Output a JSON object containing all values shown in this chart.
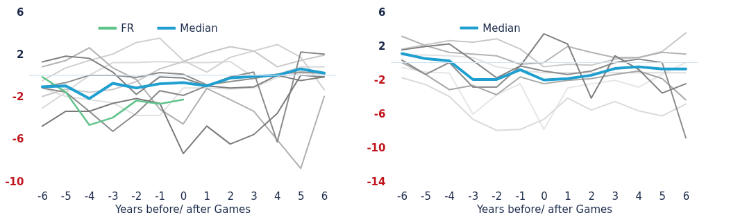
{
  "chart_data": [
    {
      "type": "line",
      "xlabel": "Years before/ after Games",
      "x": [
        -6,
        -5,
        -4,
        -3,
        -2,
        -1,
        0,
        1,
        2,
        3,
        4,
        5,
        6
      ],
      "xlim": [
        -6.56,
        6.5
      ],
      "xticks": [
        -6,
        -5,
        -4,
        -3,
        -2,
        -1,
        0,
        1,
        2,
        3,
        4,
        5,
        6
      ],
      "ylim": [
        -10,
        6
      ],
      "yticks": [
        6,
        2,
        -2,
        -6,
        -10
      ],
      "grid": false,
      "legend": "top",
      "ref_lines": [
        {
          "axis": "y",
          "value": 0,
          "color": "#cfe2f3"
        }
      ],
      "series": [
        {
          "color": "#d9d9d9",
          "values": [
            -3.1,
            -1.6,
            0,
            1.2,
            1.2,
            1.3,
            1.2,
            1.2,
            1.3,
            -0.2,
            0.1,
            0.8,
            0.8
          ]
        },
        {
          "color": "#e0e0e0",
          "values": [
            -1.2,
            -2.0,
            -2.3,
            -2.6,
            -3.8,
            -3.8,
            -1.2,
            -1.2,
            -1.3,
            -1.2,
            -0.2,
            0.2,
            0.1
          ]
        },
        {
          "color": "#c8c8c8",
          "values": [
            -2.0,
            -1.3,
            -1.6,
            -1.35,
            -0.6,
            0.6,
            1.3,
            2.1,
            2.7,
            2.3,
            0.8,
            1.4,
            1.9
          ]
        },
        {
          "color": "#d0d0d0",
          "values": [
            -0.5,
            0.7,
            1.4,
            2.0,
            3.1,
            3.5,
            1.4,
            0.3,
            1.7,
            2.3,
            2.9,
            1.7,
            -1.35
          ]
        },
        {
          "color": "#b0b0b0",
          "values": [
            0.8,
            1.4,
            2.6,
            0.7,
            -0.4,
            -3.2,
            -4.6,
            -1.24,
            -2.3,
            -3.4,
            -6.1,
            -8.8,
            -2.0
          ]
        },
        {
          "color": "#8c8c8c",
          "values": [
            -1.1,
            -0.7,
            0,
            0,
            -0.2,
            0.25,
            0.1,
            -0.9,
            -0.6,
            -0.3,
            0.1,
            0.3,
            0.2
          ]
        },
        {
          "color": "#7f7f7f",
          "values": [
            1.26,
            1.8,
            1.6,
            0.3,
            -1.8,
            -0.15,
            -0.26,
            -1.0,
            -1.2,
            -1.1,
            0,
            -0.5,
            -0.15
          ]
        },
        {
          "color": "#8a8a8a",
          "values": [
            -1.2,
            -1.6,
            -3.4,
            -5.3,
            -3.6,
            -1.46,
            -1.9,
            -1.0,
            -0.15,
            0.3,
            -6.3,
            2.2,
            2.0
          ]
        },
        {
          "color": "#7a7a7a",
          "values": [
            -4.8,
            -3.4,
            -3.4,
            -2.65,
            -2.2,
            -2.65,
            -7.4,
            -4.8,
            -6.5,
            -5.6,
            -3.6,
            0,
            -0.15
          ]
        },
        {
          "name": "FR",
          "color": "#5ec48a",
          "values": [
            -0.15,
            -1.6,
            -4.7,
            -4.0,
            -2.4,
            -2.7,
            -2.3,
            null,
            null,
            null,
            null,
            null,
            null
          ]
        },
        {
          "name": "Median",
          "color": "#1f9fd0",
          "values": [
            -1.09,
            -1.0,
            -2.2,
            -0.76,
            -1.2,
            -0.8,
            -0.7,
            -1.0,
            -0.26,
            -0.1,
            0,
            0.6,
            0.2
          ]
        }
      ]
    },
    {
      "type": "line",
      "xlabel": "Years before/ after Games",
      "x": [
        -6,
        -5,
        -4,
        -3,
        -2,
        -1,
        0,
        1,
        2,
        3,
        4,
        5,
        6
      ],
      "xlim": [
        -6.47,
        6.5
      ],
      "xticks": [
        -6,
        -5,
        -4,
        -3,
        -2,
        -1,
        0,
        1,
        2,
        3,
        4,
        5,
        6
      ],
      "ylim": [
        -14,
        6
      ],
      "yticks": [
        6,
        2,
        -2,
        -6,
        -10,
        -14
      ],
      "grid": false,
      "legend": "top",
      "ref_lines": [
        {
          "axis": "y",
          "value": 0,
          "color": "#cfe2f3"
        }
      ],
      "series": [
        {
          "color": "#e6e6e6",
          "values": [
            -0.6,
            -1.1,
            -1.25,
            -6.1,
            -3.8,
            -2.5,
            -7.9,
            -3.0,
            -2.5,
            -2.1,
            -2.9,
            -1.4,
            0
          ]
        },
        {
          "color": "#dadada",
          "values": [
            -1.8,
            -2.6,
            -4.0,
            -6.7,
            -8.0,
            -7.9,
            -6.7,
            -4.2,
            -5.6,
            -4.6,
            -5.7,
            -6.3,
            -4.9
          ]
        },
        {
          "color": "#e0e0e0",
          "values": [
            0.9,
            0.9,
            0.8,
            0.6,
            -0.5,
            -0.9,
            -1.2,
            -1.2,
            -1.2,
            -1.2,
            -1.2,
            -1.2,
            -1.2
          ]
        },
        {
          "color": "#c8c8c8",
          "values": [
            1.6,
            2.1,
            2.6,
            2.4,
            2.8,
            1.6,
            -0.5,
            -0.2,
            -0.3,
            0.4,
            0.6,
            1.3,
            3.5
          ]
        },
        {
          "color": "#b4b4b4",
          "values": [
            3.1,
            2.0,
            1.2,
            1.0,
            0.8,
            -0.2,
            0.0,
            1.9,
            1.2,
            0.6,
            0.6,
            1.2,
            1.0
          ]
        },
        {
          "color": "#a8a8a8",
          "values": [
            0,
            -1.4,
            -3.2,
            -2.7,
            -3.8,
            -1.7,
            -2.5,
            -2.1,
            -1.9,
            -1.4,
            -1.0,
            -1.9,
            -4.4
          ]
        },
        {
          "color": "#8c8c8c",
          "values": [
            0.3,
            -1.4,
            0,
            -2.9,
            -2.9,
            -0.4,
            -1.0,
            -1.4,
            -1.0,
            0,
            0.4,
            0,
            -8.9
          ]
        },
        {
          "color": "#7f7f7f",
          "values": [
            1.5,
            1.9,
            2.2,
            0.25,
            -1.8,
            -0.4,
            3.4,
            2.2,
            -4.2,
            0.8,
            -0.8,
            -3.6,
            -2.5
          ]
        },
        {
          "name": "Median",
          "color": "#1f9fd0",
          "values": [
            1.06,
            0.46,
            0.2,
            -2.0,
            -2.0,
            -0.85,
            -2.06,
            -1.9,
            -1.5,
            -0.7,
            -0.5,
            -0.76,
            -0.76
          ]
        }
      ]
    }
  ]
}
